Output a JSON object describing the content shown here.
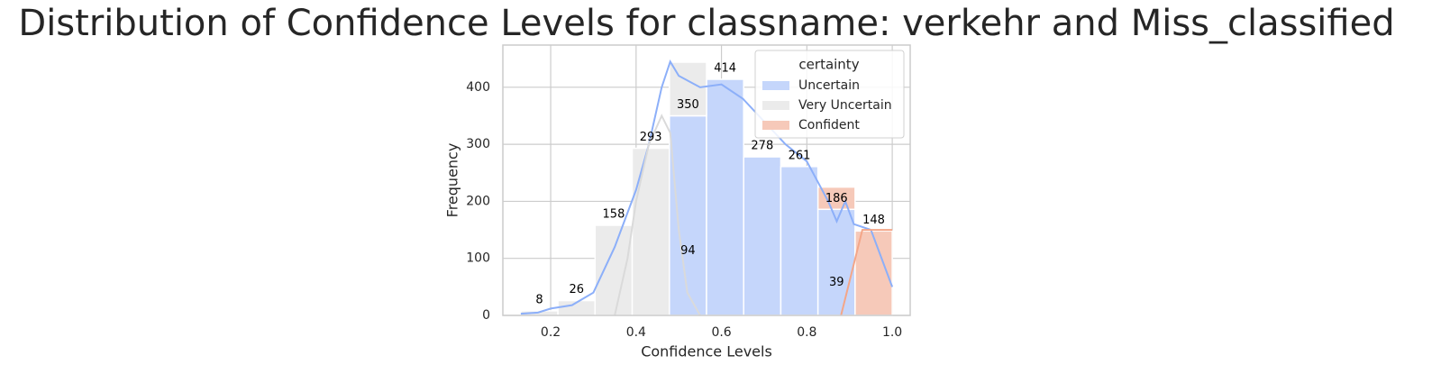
{
  "chart_data": {
    "type": "histogram",
    "title": "Distribution of Confidence Levels for classname: verkehr and Miss_classified",
    "xlabel": "Confidence Levels",
    "ylabel": "Frequency",
    "legend_title": "certainty",
    "legend": "upper right",
    "grid": true,
    "bins": [
      0.13,
      0.217,
      0.304,
      0.391,
      0.478,
      0.565,
      0.652,
      0.739,
      0.826,
      0.913,
      1.0
    ],
    "series": [
      {
        "name": "Uncertain",
        "color": "#c5d6fb",
        "line_color": "#8caff9",
        "values": [
          0,
          0,
          0,
          0,
          350,
          414,
          278,
          261,
          186,
          0
        ]
      },
      {
        "name": "Very Uncertain",
        "color": "#ebebeb",
        "line_color": "#dadada",
        "values": [
          8,
          26,
          158,
          293,
          94,
          0,
          0,
          0,
          0,
          0
        ]
      },
      {
        "name": "Confident",
        "color": "#f6c9b9",
        "line_color": "#f4a688",
        "values": [
          0,
          0,
          0,
          0,
          0,
          0,
          0,
          0,
          39,
          148
        ]
      }
    ],
    "kde": [
      {
        "x": [
          0.13,
          0.17,
          0.2,
          0.25,
          0.3,
          0.35,
          0.4,
          0.43,
          0.46,
          0.48,
          0.5,
          0.55,
          0.6,
          0.65,
          0.7,
          0.75,
          0.8,
          0.85,
          0.87,
          0.89,
          0.91,
          0.95,
          1.0
        ],
        "values": [
          3,
          5,
          12,
          18,
          40,
          120,
          220,
          300,
          400,
          445,
          420,
          400,
          405,
          380,
          340,
          300,
          270,
          200,
          165,
          200,
          160,
          150,
          50
        ]
      },
      {
        "x": [
          0.35,
          0.38,
          0.4,
          0.43,
          0.46,
          0.48,
          0.5,
          0.52,
          0.55
        ],
        "values": [
          0,
          100,
          200,
          300,
          350,
          320,
          150,
          40,
          0
        ]
      },
      {
        "x": [
          0.88,
          0.9,
          0.93,
          1.0
        ],
        "values": [
          0,
          60,
          150,
          150
        ]
      }
    ],
    "xlim": [
      0.088,
      1.042
    ],
    "xticks": [
      0.2,
      0.4,
      0.6,
      0.8,
      {
        "value": 1.0,
        "label": "1.0"
      }
    ],
    "ylim": [
      0,
      474
    ],
    "yticks": [
      0,
      100,
      200,
      300,
      400
    ]
  }
}
